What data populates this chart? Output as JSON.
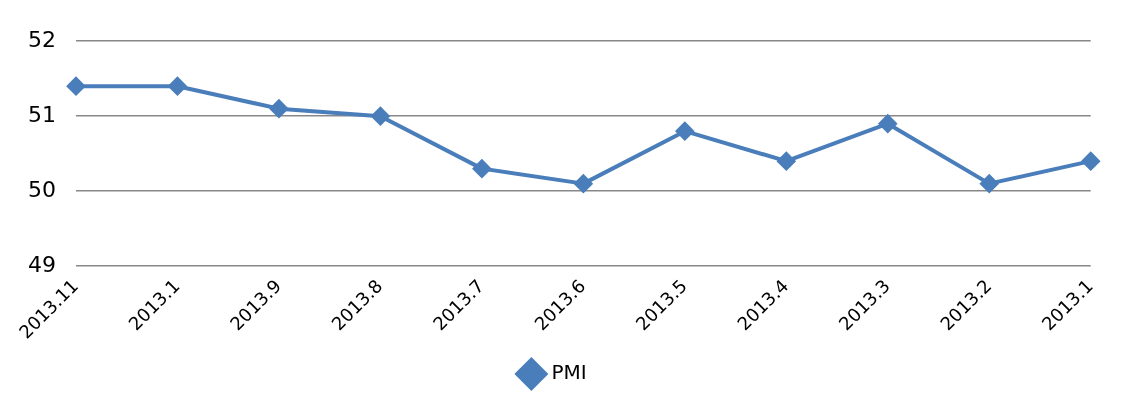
{
  "chart_data": {
    "type": "line",
    "categories": [
      "2013.11",
      "2013.1",
      "2013.9",
      "2013.8",
      "2013.7",
      "2013.6",
      "2013.5",
      "2013.4",
      "2013.3",
      "2013.2",
      "2013.1"
    ],
    "series": [
      {
        "name": "PMI",
        "color": "#4a7ebb",
        "values": [
          51.4,
          51.4,
          51.1,
          51.0,
          50.3,
          50.1,
          50.8,
          50.4,
          50.9,
          50.1,
          50.4
        ]
      }
    ],
    "ylim": [
      49,
      52
    ],
    "yticks": [
      49,
      50,
      51,
      52
    ],
    "grid": "y",
    "legend": "bottom",
    "marker": "diamond",
    "line_style": "solid"
  }
}
